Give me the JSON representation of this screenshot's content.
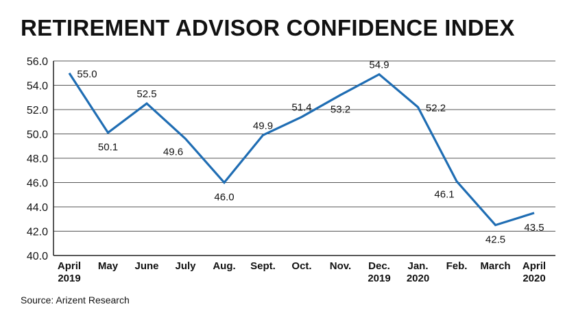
{
  "chart_data": {
    "type": "line",
    "title": "RETIREMENT ADVISOR CONFIDENCE INDEX",
    "categories": [
      [
        "April",
        "2019"
      ],
      [
        "May"
      ],
      [
        "June"
      ],
      [
        "July"
      ],
      [
        "Aug."
      ],
      [
        "Sept."
      ],
      [
        "Oct."
      ],
      [
        "Nov."
      ],
      [
        "Dec.",
        "2019"
      ],
      [
        "Jan.",
        "2020"
      ],
      [
        "Feb."
      ],
      [
        "March"
      ],
      [
        "April",
        "2020"
      ]
    ],
    "values": [
      55.0,
      50.1,
      52.5,
      49.6,
      46.0,
      49.9,
      51.4,
      53.2,
      54.9,
      52.2,
      46.1,
      42.5,
      43.5
    ],
    "data_labels": [
      "55.0",
      "50.1",
      "52.5",
      "49.6",
      "46.0",
      "49.9",
      "51.4",
      "53.2",
      "54.9",
      "52.2",
      "46.1",
      "42.5",
      "43.5"
    ],
    "label_placement": [
      "right",
      "below",
      "above",
      "below-left",
      "below",
      "above",
      "above",
      "below",
      "above",
      "right",
      "below-left",
      "below",
      "below"
    ],
    "yticks": [
      "40.0",
      "42.0",
      "44.0",
      "46.0",
      "48.0",
      "50.0",
      "52.0",
      "54.0",
      "56.0"
    ],
    "ylim": [
      40,
      56
    ],
    "xlabel": "",
    "ylabel": "",
    "grid": "horizontal",
    "line_color": "#1f6db3",
    "grid_color": "#555555"
  },
  "source": "Source: Arizent Research"
}
